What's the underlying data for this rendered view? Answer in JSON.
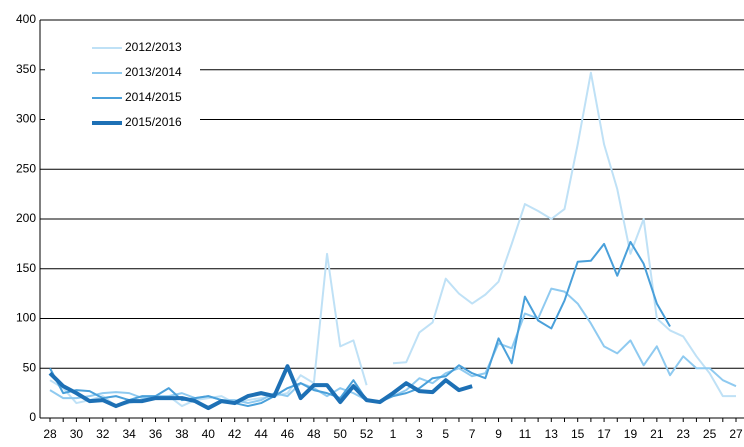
{
  "chart_data": {
    "type": "line",
    "categories": [
      "28",
      null,
      "30",
      null,
      "32",
      null,
      "34",
      null,
      "36",
      null,
      "38",
      null,
      "40",
      null,
      "42",
      null,
      "44",
      null,
      "46",
      null,
      "48",
      null,
      "50",
      null,
      "52",
      null,
      "1",
      null,
      "3",
      null,
      "5",
      null,
      "7",
      null,
      "9",
      null,
      "11",
      null,
      "13",
      null,
      "15",
      null,
      "17",
      null,
      "19",
      null,
      "21",
      null,
      "23",
      null,
      "25",
      null,
      "27"
    ],
    "series": [
      {
        "name": "2012/2013",
        "color": "#bfe1f6",
        "width": 2,
        "values": [
          38,
          30,
          15,
          18,
          22,
          12,
          15,
          18,
          20,
          22,
          12,
          18,
          20,
          22,
          15,
          18,
          20,
          22,
          25,
          43,
          35,
          165,
          72,
          78,
          33,
          null,
          55,
          56,
          86,
          96,
          140,
          125,
          115,
          124,
          137,
          175,
          215,
          208,
          200,
          210,
          275,
          347,
          275,
          230,
          165,
          200,
          100,
          88,
          82,
          62,
          45,
          22,
          22
        ]
      },
      {
        "name": "2013/2014",
        "color": "#8fcaf0",
        "width": 2,
        "values": [
          28,
          20,
          20,
          22,
          25,
          26,
          25,
          20,
          22,
          22,
          25,
          20,
          22,
          18,
          18,
          15,
          18,
          25,
          22,
          35,
          30,
          22,
          30,
          25,
          18,
          17,
          22,
          28,
          40,
          35,
          45,
          50,
          42,
          45,
          75,
          70,
          105,
          100,
          130,
          127,
          115,
          95,
          72,
          65,
          78,
          53,
          72,
          43,
          62,
          50,
          50,
          38,
          32
        ]
      },
      {
        "name": "2014/2015",
        "color": "#4aa0da",
        "width": 2,
        "values": [
          50,
          25,
          28,
          27,
          20,
          22,
          18,
          22,
          22,
          30,
          18,
          20,
          22,
          18,
          15,
          12,
          15,
          22,
          30,
          35,
          28,
          25,
          20,
          38,
          18,
          16,
          22,
          25,
          30,
          40,
          42,
          53,
          45,
          40,
          80,
          55,
          122,
          98,
          90,
          118,
          157,
          158,
          175,
          143,
          177,
          155,
          115,
          92,
          null,
          null,
          null,
          null,
          null
        ]
      },
      {
        "name": "2015/2016",
        "color": "#1d70b5",
        "width": 4,
        "values": [
          45,
          32,
          25,
          17,
          18,
          12,
          17,
          17,
          20,
          20,
          20,
          17,
          10,
          17,
          15,
          22,
          25,
          22,
          52,
          20,
          33,
          33,
          16,
          32,
          18,
          16,
          25,
          35,
          27,
          26,
          38,
          28,
          32,
          null,
          null,
          null,
          null,
          null,
          null,
          null,
          null,
          null,
          null,
          null,
          null,
          null,
          null,
          null,
          null,
          null,
          null,
          null,
          null
        ]
      }
    ],
    "ylim": [
      0,
      400
    ],
    "yticks": [
      0,
      50,
      100,
      150,
      200,
      250,
      300,
      350,
      400
    ],
    "grid": true,
    "legend": "top-left"
  }
}
